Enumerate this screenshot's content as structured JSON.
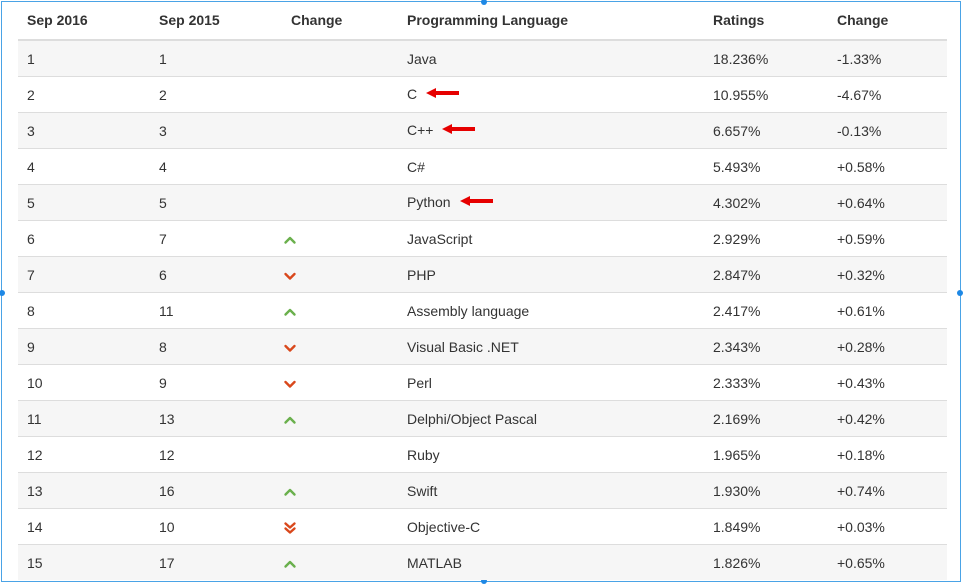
{
  "table": {
    "headers": [
      "Sep 2016",
      "Sep 2015",
      "Change",
      "Programming Language",
      "Ratings",
      "Change"
    ],
    "rows": [
      {
        "rank2016": "1",
        "rank2015": "1",
        "trend": "none",
        "language": "Java",
        "rating": "18.236%",
        "change": "-1.33%",
        "marked": false
      },
      {
        "rank2016": "2",
        "rank2015": "2",
        "trend": "none",
        "language": "C",
        "rating": "10.955%",
        "change": "-4.67%",
        "marked": true
      },
      {
        "rank2016": "3",
        "rank2015": "3",
        "trend": "none",
        "language": "C++",
        "rating": "6.657%",
        "change": "-0.13%",
        "marked": true
      },
      {
        "rank2016": "4",
        "rank2015": "4",
        "trend": "none",
        "language": "C#",
        "rating": "5.493%",
        "change": "+0.58%",
        "marked": false
      },
      {
        "rank2016": "5",
        "rank2015": "5",
        "trend": "none",
        "language": "Python",
        "rating": "4.302%",
        "change": "+0.64%",
        "marked": true
      },
      {
        "rank2016": "6",
        "rank2015": "7",
        "trend": "up",
        "language": "JavaScript",
        "rating": "2.929%",
        "change": "+0.59%",
        "marked": false
      },
      {
        "rank2016": "7",
        "rank2015": "6",
        "trend": "down",
        "language": "PHP",
        "rating": "2.847%",
        "change": "+0.32%",
        "marked": false
      },
      {
        "rank2016": "8",
        "rank2015": "11",
        "trend": "up",
        "language": "Assembly language",
        "rating": "2.417%",
        "change": "+0.61%",
        "marked": false
      },
      {
        "rank2016": "9",
        "rank2015": "8",
        "trend": "down",
        "language": "Visual Basic .NET",
        "rating": "2.343%",
        "change": "+0.28%",
        "marked": false
      },
      {
        "rank2016": "10",
        "rank2015": "9",
        "trend": "down",
        "language": "Perl",
        "rating": "2.333%",
        "change": "+0.43%",
        "marked": false
      },
      {
        "rank2016": "11",
        "rank2015": "13",
        "trend": "up",
        "language": "Delphi/Object Pascal",
        "rating": "2.169%",
        "change": "+0.42%",
        "marked": false
      },
      {
        "rank2016": "12",
        "rank2015": "12",
        "trend": "none",
        "language": "Ruby",
        "rating": "1.965%",
        "change": "+0.18%",
        "marked": false
      },
      {
        "rank2016": "13",
        "rank2015": "16",
        "trend": "up",
        "language": "Swift",
        "rating": "1.930%",
        "change": "+0.74%",
        "marked": false
      },
      {
        "rank2016": "14",
        "rank2015": "10",
        "trend": "down-double",
        "language": "Objective-C",
        "rating": "1.849%",
        "change": "+0.03%",
        "marked": false
      },
      {
        "rank2016": "15",
        "rank2015": "17",
        "trend": "up",
        "language": "MATLAB",
        "rating": "1.826%",
        "change": "+0.65%",
        "marked": false
      }
    ]
  },
  "icons": {
    "up": "chevron-up-icon",
    "down": "chevron-down-icon",
    "down-double": "double-chevron-down-icon",
    "marker": "red-arrow-left-icon"
  },
  "colors": {
    "up": "#6ab04c",
    "down": "#d9481c",
    "marker": "#e60000",
    "selection": "#1e88e5"
  }
}
